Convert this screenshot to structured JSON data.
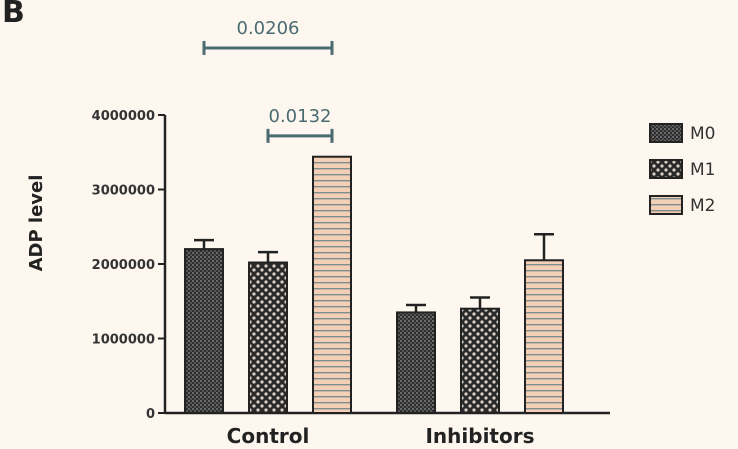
{
  "panel_letter": "B",
  "chart_data": {
    "type": "bar",
    "categories": [
      "Control",
      "Inhibitors"
    ],
    "series": [
      {
        "name": "M0",
        "values": [
          2200000,
          1350000
        ],
        "errors": [
          120000,
          100000
        ],
        "pattern": "dense-hatch"
      },
      {
        "name": "M1",
        "values": [
          2020000,
          1400000
        ],
        "errors": [
          140000,
          150000
        ],
        "pattern": "checker"
      },
      {
        "name": "M2",
        "values": [
          3440000,
          2050000
        ],
        "errors": [
          0,
          350000
        ],
        "pattern": "horizontal-stripes"
      }
    ],
    "ylabel": "ADP level",
    "xlabel": "",
    "ylim": [
      0,
      4000000
    ],
    "yticks": [
      0,
      1000000,
      2000000,
      3000000,
      4000000
    ],
    "ytick_labels": [
      "0",
      "1000000",
      "2000000",
      "3000000",
      "4000000"
    ],
    "legend": {
      "position": "right",
      "entries": [
        "M0",
        "M1",
        "M2"
      ]
    },
    "grid": false,
    "significance": [
      {
        "label": "0.0206",
        "from": {
          "category": 0,
          "series": 0
        },
        "to": {
          "category": 0,
          "series": 2
        },
        "level": 4900000
      },
      {
        "label": "0.0132",
        "from": {
          "category": 0,
          "series": 1
        },
        "to": {
          "category": 0,
          "series": 2
        },
        "level": 3720000
      }
    ],
    "colors": {
      "axis": "#222222",
      "bar_dark": "#3a3a3a",
      "stripe_light": "#f0c8b0",
      "stripe_line": "#7e8e8e",
      "sig": "#4a6b72"
    }
  }
}
